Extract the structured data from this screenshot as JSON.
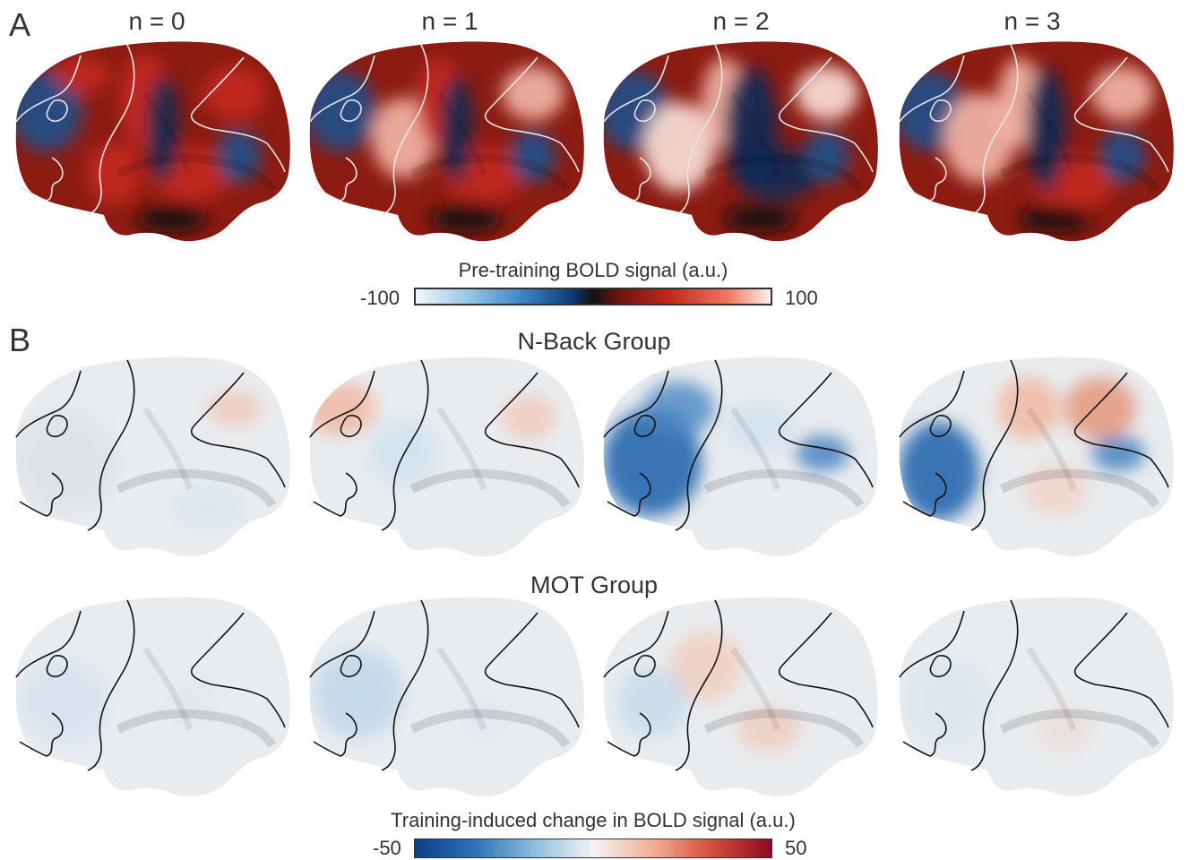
{
  "panel_a": {
    "letter": "A",
    "column_titles": [
      "n = 0",
      "n = 1",
      "n = 2",
      "n = 3"
    ],
    "colorbar": {
      "label": "Pre-training BOLD signal (a.u.)",
      "min_label": "-100",
      "max_label": "100"
    }
  },
  "panel_b": {
    "letter": "B",
    "row_titles": [
      "N-Back Group",
      "MOT Group"
    ],
    "colorbar": {
      "label": "Training-induced change in BOLD signal (a.u.)",
      "min_label": "-50",
      "max_label": "50"
    }
  },
  "colors": {
    "pretraining_scale": [
      "#f2f7fb",
      "#3c86c6",
      "#0d3b78",
      "#111111",
      "#6e120e",
      "#c42a1c",
      "#fff1ea"
    ],
    "change_scale": [
      "#0a3f86",
      "#8fbfdf",
      "#f4f4f4",
      "#f3b29a",
      "#8b0a20"
    ],
    "outline_a": "#e6e6e6",
    "outline_b": "#111111"
  }
}
